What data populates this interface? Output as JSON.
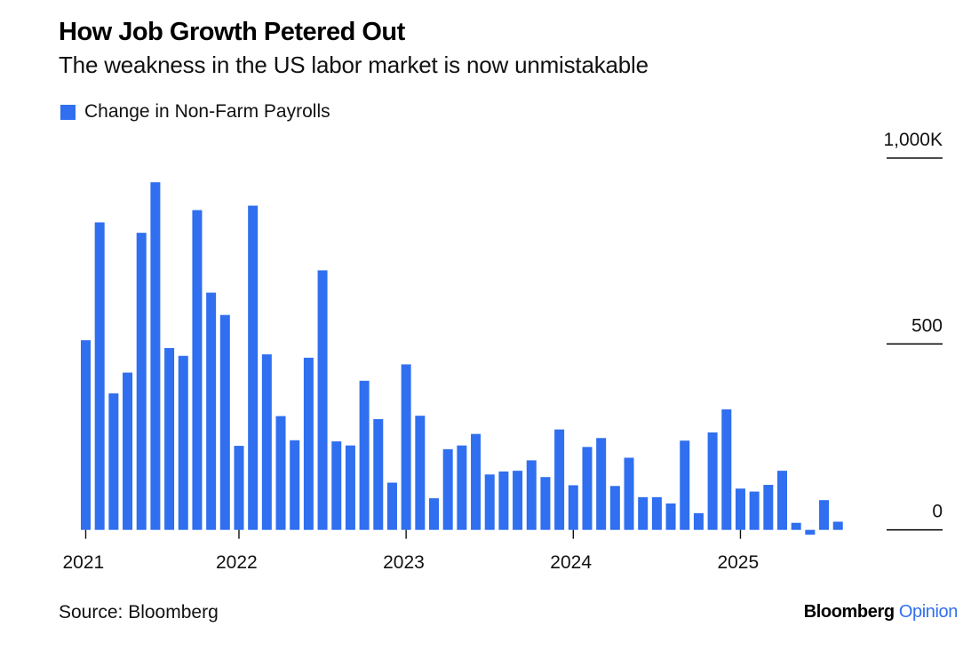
{
  "header": {
    "title": "How Job Growth Petered Out",
    "subtitle": "The weakness in the US labor market is now unmistakable"
  },
  "legend": {
    "label": "Change in Non-Farm Payrolls",
    "color": "#2f6ff0"
  },
  "footer": {
    "source": "Source: Bloomberg",
    "brand_main": "Bloomberg",
    "brand_accent": "Opinion"
  },
  "colors": {
    "bar": "#2f6ff0",
    "axis": "#111111"
  },
  "chart_data": {
    "type": "bar",
    "title": "How Job Growth Petered Out",
    "subtitle": "The weakness in the US labor market is now unmistakable",
    "xlabel": "",
    "ylabel": "",
    "units": "thousands of jobs",
    "ylim": [
      0,
      1000
    ],
    "y_ticks": [
      {
        "value": 0,
        "label": "0"
      },
      {
        "value": 500,
        "label": "500"
      },
      {
        "value": 1000,
        "label": "1,000K"
      }
    ],
    "y_axis_position": "right",
    "x_ticks": [
      {
        "index": 0,
        "label": "2021"
      },
      {
        "index": 11,
        "label": "2022"
      },
      {
        "index": 23,
        "label": "2023"
      },
      {
        "index": 35,
        "label": "2024"
      },
      {
        "index": 47,
        "label": "2025"
      }
    ],
    "grid": false,
    "legend_position": "top-left",
    "series": [
      {
        "name": "Change in Non-Farm Payrolls",
        "color": "#2f6ff0",
        "values": [
          510,
          827,
          367,
          423,
          799,
          935,
          489,
          468,
          860,
          638,
          578,
          226,
          872,
          472,
          306,
          241,
          463,
          698,
          238,
          227,
          401,
          298,
          127,
          445,
          307,
          85,
          217,
          227,
          258,
          149,
          157,
          159,
          187,
          142,
          270,
          120,
          223,
          247,
          118,
          194,
          88,
          88,
          71,
          240,
          45,
          262,
          324,
          111,
          103,
          121,
          159,
          19,
          -13,
          80,
          22
        ]
      }
    ]
  }
}
